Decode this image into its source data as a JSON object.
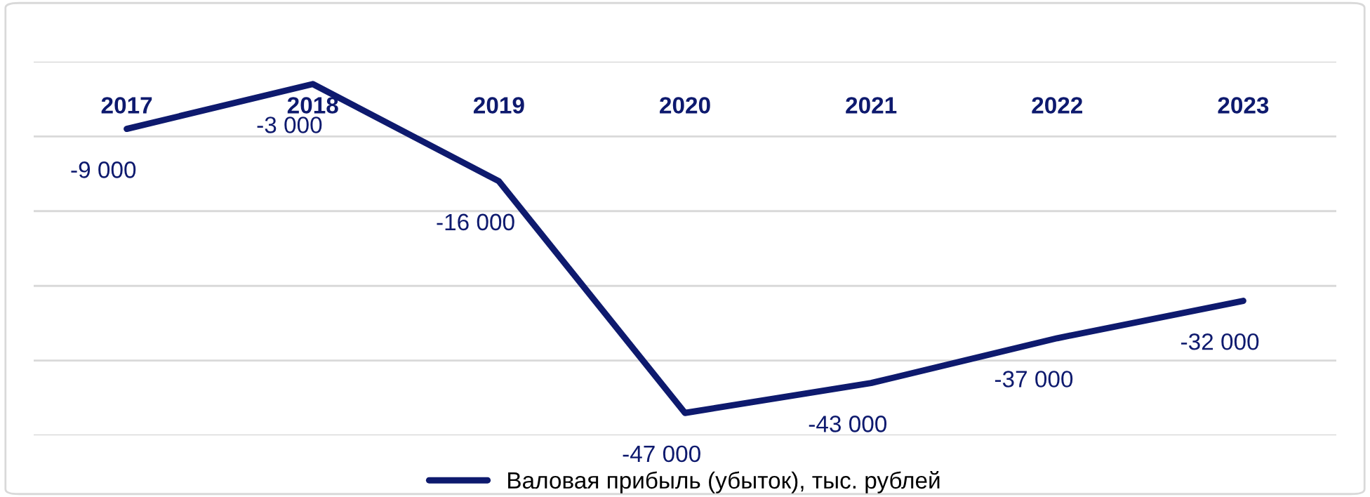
{
  "chart_data": {
    "type": "line",
    "categories": [
      "2017",
      "2018",
      "2019",
      "2020",
      "2021",
      "2022",
      "2023"
    ],
    "series": [
      {
        "name": "Валовая прибыль (убыток), тыс. рублей",
        "color": "#0e1a6e",
        "values": [
          -9000,
          -3000,
          -16000,
          -47000,
          -43000,
          -37000,
          -32000
        ],
        "value_labels": [
          "-9 000",
          "-3 000",
          "-16 000",
          "-47 000",
          "-43 000",
          "-37 000",
          "-32 000"
        ]
      }
    ],
    "ylim": [
      -50000,
      0
    ],
    "yticks": [
      {
        "value": -50000,
        "label": null
      },
      {
        "value": -40000,
        "label": null
      },
      {
        "value": -30000,
        "label": null
      },
      {
        "value": -20000,
        "label": null
      },
      {
        "value": -10000,
        "label": null
      },
      {
        "value": 0,
        "label": null
      }
    ],
    "tick_labels": "x",
    "grid": "y",
    "legend": "bottom",
    "marker": "none",
    "line_style": "solid"
  }
}
